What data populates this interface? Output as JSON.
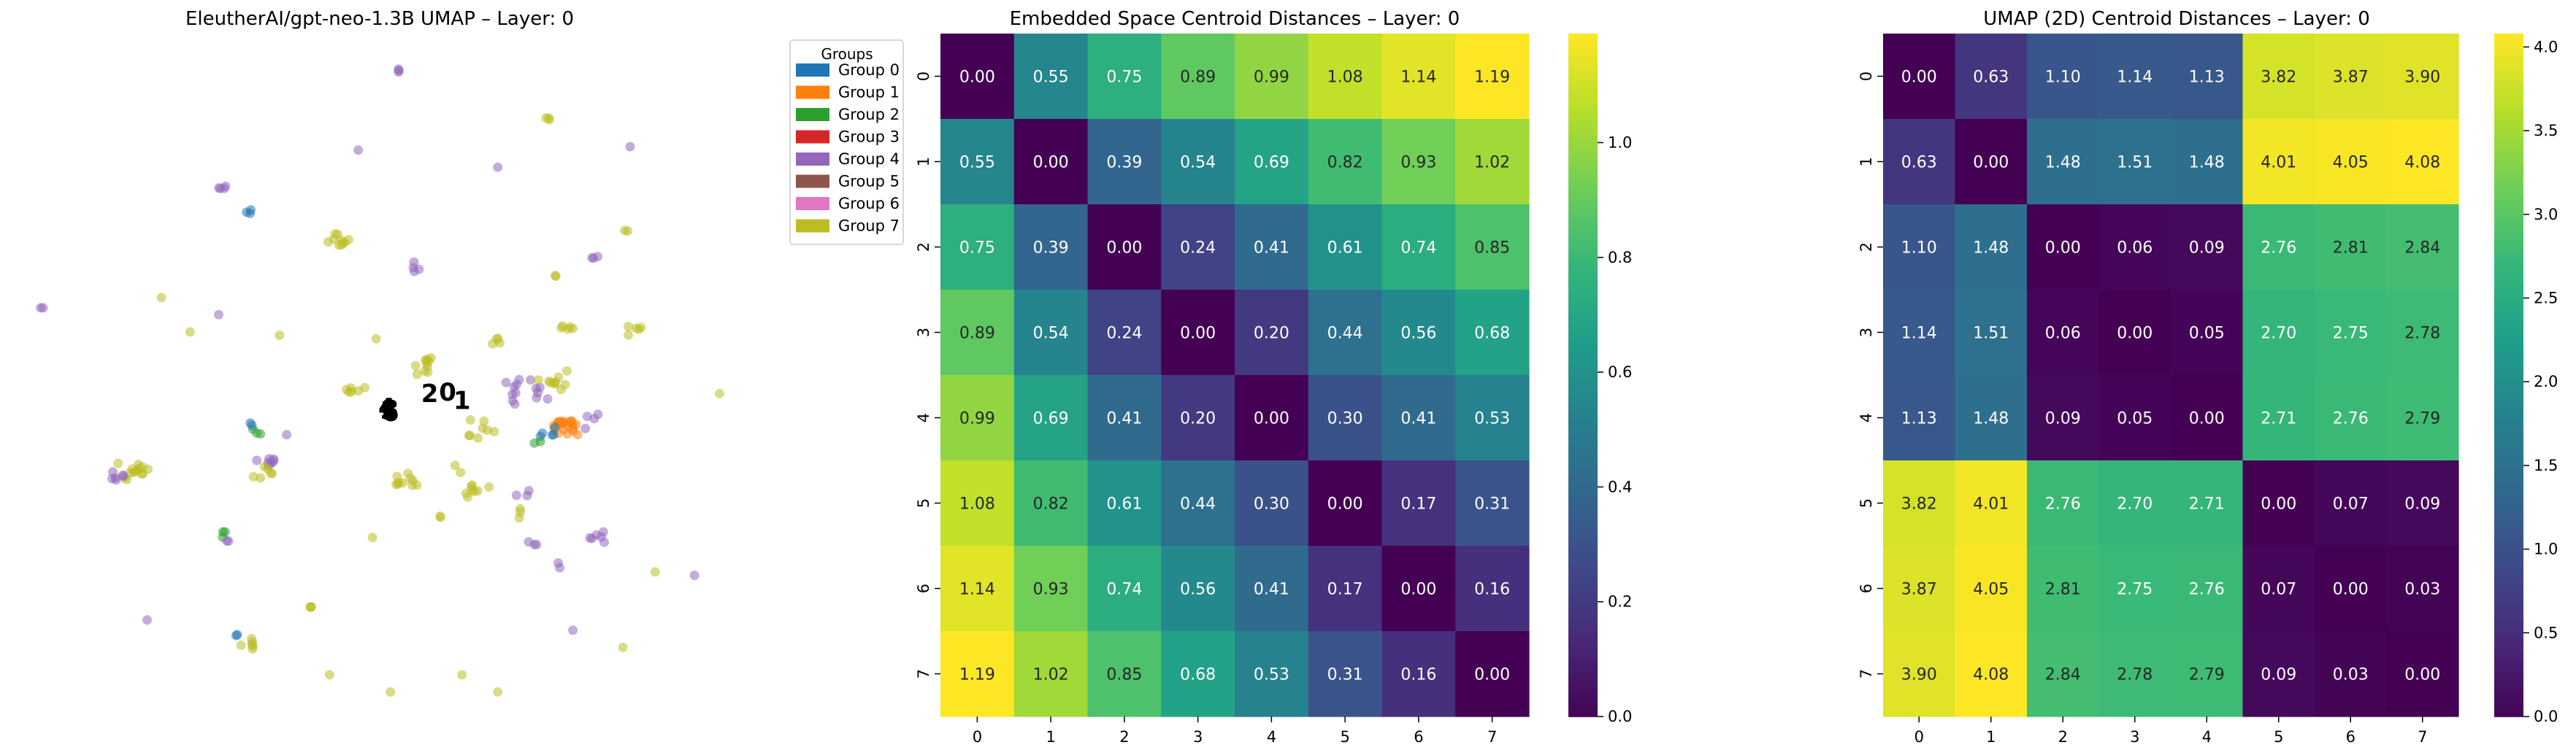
{
  "chart_data": [
    {
      "type": "scatter",
      "title": "EleutherAI/gpt-neo-1.3B UMAP – Layer: 0",
      "legend": {
        "title": "Groups",
        "placement": "outside-right",
        "entries": [
          {
            "label": "Group 0",
            "color": "#1f77b4"
          },
          {
            "label": "Group 1",
            "color": "#ff7f0e"
          },
          {
            "label": "Group 2",
            "color": "#2ca02c"
          },
          {
            "label": "Group 3",
            "color": "#d62728"
          },
          {
            "label": "Group 4",
            "color": "#9467bd"
          },
          {
            "label": "Group 5",
            "color": "#8c564b"
          },
          {
            "label": "Group 6",
            "color": "#e377c2"
          },
          {
            "label": "Group 7",
            "color": "#bcbd22"
          }
        ]
      },
      "xlim": [
        -1.0,
        19.0
      ],
      "ylim": [
        -1.0,
        19.0
      ],
      "axes_visible": false,
      "centroid_labels": [
        {
          "label": "3",
          "x": 9.3,
          "y": 8.1
        },
        {
          "label": "4",
          "x": 9.2,
          "y": 8.15
        },
        {
          "label": "5",
          "x": 9.25,
          "y": 8.05
        },
        {
          "label": "6",
          "x": 9.3,
          "y": 8.0
        },
        {
          "label": "2",
          "x": 10.4,
          "y": 8.55
        },
        {
          "label": "0",
          "x": 10.9,
          "y": 8.6
        },
        {
          "label": "1",
          "x": 11.3,
          "y": 8.35
        }
      ],
      "clusters": [
        {
          "group": 4,
          "x": 9.5,
          "y": 18.2,
          "n": 3,
          "spread": 0.1
        },
        {
          "group": 7,
          "x": 13.7,
          "y": 16.8,
          "n": 3,
          "spread": 0.08
        },
        {
          "group": 4,
          "x": 8.4,
          "y": 15.9,
          "n": 1,
          "spread": 0.0
        },
        {
          "group": 4,
          "x": 16.0,
          "y": 16.0,
          "n": 1,
          "spread": 0.0
        },
        {
          "group": 4,
          "x": 12.3,
          "y": 15.4,
          "n": 1,
          "spread": 0.0
        },
        {
          "group": 4,
          "x": 4.6,
          "y": 14.8,
          "n": 4,
          "spread": 0.12
        },
        {
          "group": 0,
          "x": 5.3,
          "y": 14.1,
          "n": 3,
          "spread": 0.12
        },
        {
          "group": 7,
          "x": 7.8,
          "y": 13.3,
          "n": 10,
          "spread": 0.35
        },
        {
          "group": 4,
          "x": 10.0,
          "y": 12.5,
          "n": 4,
          "spread": 0.25
        },
        {
          "group": 7,
          "x": 15.9,
          "y": 13.6,
          "n": 2,
          "spread": 0.1
        },
        {
          "group": 4,
          "x": 15.0,
          "y": 12.8,
          "n": 3,
          "spread": 0.15
        },
        {
          "group": 7,
          "x": 13.9,
          "y": 12.2,
          "n": 2,
          "spread": 0.1
        },
        {
          "group": 4,
          "x": -0.4,
          "y": 11.3,
          "n": 2,
          "spread": 0.08
        },
        {
          "group": 7,
          "x": 2.9,
          "y": 11.6,
          "n": 1,
          "spread": 0.0
        },
        {
          "group": 4,
          "x": 4.5,
          "y": 11.1,
          "n": 1,
          "spread": 0.0
        },
        {
          "group": 7,
          "x": 3.7,
          "y": 10.6,
          "n": 1,
          "spread": 0.0
        },
        {
          "group": 7,
          "x": 8.9,
          "y": 10.4,
          "n": 1,
          "spread": 0.0
        },
        {
          "group": 7,
          "x": 6.2,
          "y": 10.5,
          "n": 1,
          "spread": 0.0
        },
        {
          "group": 7,
          "x": 14.2,
          "y": 10.7,
          "n": 5,
          "spread": 0.2
        },
        {
          "group": 7,
          "x": 16.2,
          "y": 10.6,
          "n": 5,
          "spread": 0.3
        },
        {
          "group": 7,
          "x": 12.4,
          "y": 10.3,
          "n": 4,
          "spread": 0.25
        },
        {
          "group": 7,
          "x": 10.2,
          "y": 9.6,
          "n": 10,
          "spread": 0.4
        },
        {
          "group": 7,
          "x": 8.3,
          "y": 8.9,
          "n": 6,
          "spread": 0.3
        },
        {
          "group": 7,
          "x": 11.9,
          "y": 7.8,
          "n": 8,
          "spread": 0.5
        },
        {
          "group": 4,
          "x": 13.1,
          "y": 8.8,
          "n": 14,
          "spread": 0.7
        },
        {
          "group": 7,
          "x": 13.8,
          "y": 9.2,
          "n": 10,
          "spread": 0.5
        },
        {
          "group": 1,
          "x": 14.2,
          "y": 7.8,
          "n": 22,
          "spread": 0.35
        },
        {
          "group": 0,
          "x": 13.7,
          "y": 7.7,
          "n": 5,
          "spread": 0.3
        },
        {
          "group": 2,
          "x": 13.5,
          "y": 7.4,
          "n": 2,
          "spread": 0.2
        },
        {
          "group": 4,
          "x": 15.0,
          "y": 8.0,
          "n": 4,
          "spread": 0.4
        },
        {
          "group": 7,
          "x": 18.5,
          "y": 8.8,
          "n": 1,
          "spread": 0.0
        },
        {
          "group": 7,
          "x": 2.1,
          "y": 6.5,
          "n": 14,
          "spread": 0.45
        },
        {
          "group": 4,
          "x": 1.7,
          "y": 6.4,
          "n": 6,
          "spread": 0.2
        },
        {
          "group": 4,
          "x": 5.8,
          "y": 6.8,
          "n": 8,
          "spread": 0.25
        },
        {
          "group": 7,
          "x": 5.7,
          "y": 6.5,
          "n": 6,
          "spread": 0.3
        },
        {
          "group": 2,
          "x": 5.6,
          "y": 7.7,
          "n": 3,
          "spread": 0.15
        },
        {
          "group": 0,
          "x": 5.4,
          "y": 7.9,
          "n": 2,
          "spread": 0.1
        },
        {
          "group": 4,
          "x": 6.4,
          "y": 7.6,
          "n": 1,
          "spread": 0.0
        },
        {
          "group": 7,
          "x": 9.8,
          "y": 6.3,
          "n": 10,
          "spread": 0.35
        },
        {
          "group": 7,
          "x": 11.8,
          "y": 6.0,
          "n": 8,
          "spread": 0.4
        },
        {
          "group": 7,
          "x": 11.1,
          "y": 6.6,
          "n": 2,
          "spread": 0.2
        },
        {
          "group": 4,
          "x": 13.0,
          "y": 5.9,
          "n": 3,
          "spread": 0.2
        },
        {
          "group": 7,
          "x": 13.0,
          "y": 5.3,
          "n": 3,
          "spread": 0.25
        },
        {
          "group": 7,
          "x": 10.7,
          "y": 5.2,
          "n": 2,
          "spread": 0.15
        },
        {
          "group": 2,
          "x": 4.6,
          "y": 4.7,
          "n": 3,
          "spread": 0.15
        },
        {
          "group": 4,
          "x": 4.8,
          "y": 4.5,
          "n": 2,
          "spread": 0.1
        },
        {
          "group": 7,
          "x": 8.8,
          "y": 4.6,
          "n": 1,
          "spread": 0.0
        },
        {
          "group": 4,
          "x": 13.2,
          "y": 4.4,
          "n": 3,
          "spread": 0.2
        },
        {
          "group": 4,
          "x": 15.0,
          "y": 4.6,
          "n": 6,
          "spread": 0.3
        },
        {
          "group": 4,
          "x": 14.1,
          "y": 3.8,
          "n": 2,
          "spread": 0.15
        },
        {
          "group": 7,
          "x": 16.7,
          "y": 3.6,
          "n": 1,
          "spread": 0.0
        },
        {
          "group": 4,
          "x": 17.8,
          "y": 3.5,
          "n": 1,
          "spread": 0.0
        },
        {
          "group": 7,
          "x": 7.0,
          "y": 2.6,
          "n": 3,
          "spread": 0.1
        },
        {
          "group": 4,
          "x": 2.5,
          "y": 2.2,
          "n": 1,
          "spread": 0.0
        },
        {
          "group": 7,
          "x": 5.3,
          "y": 1.5,
          "n": 6,
          "spread": 0.3
        },
        {
          "group": 0,
          "x": 5.0,
          "y": 1.8,
          "n": 2,
          "spread": 0.1
        },
        {
          "group": 4,
          "x": 14.4,
          "y": 1.9,
          "n": 1,
          "spread": 0.0
        },
        {
          "group": 7,
          "x": 15.8,
          "y": 1.4,
          "n": 1,
          "spread": 0.0
        },
        {
          "group": 7,
          "x": 7.6,
          "y": 0.6,
          "n": 1,
          "spread": 0.0
        },
        {
          "group": 7,
          "x": 9.3,
          "y": 0.1,
          "n": 1,
          "spread": 0.0
        },
        {
          "group": 7,
          "x": 11.3,
          "y": 0.6,
          "n": 1,
          "spread": 0.0
        },
        {
          "group": 7,
          "x": 12.3,
          "y": 0.1,
          "n": 1,
          "spread": 0.0
        }
      ]
    },
    {
      "type": "heatmap",
      "title": "Embedded Space Centroid Distances – Layer: 0",
      "xticks": [
        "0",
        "1",
        "2",
        "3",
        "4",
        "5",
        "6",
        "7"
      ],
      "yticks": [
        "0",
        "1",
        "2",
        "3",
        "4",
        "5",
        "6",
        "7"
      ],
      "colormap": "viridis",
      "vmin": 0.0,
      "vmax": 1.19,
      "colorbar_ticks": [
        "0.0",
        "0.2",
        "0.4",
        "0.6",
        "0.8",
        "1.0"
      ],
      "colorbar_tick_values": [
        0.0,
        0.2,
        0.4,
        0.6,
        0.8,
        1.0
      ],
      "values": [
        [
          0.0,
          0.55,
          0.75,
          0.89,
          0.99,
          1.08,
          1.14,
          1.19
        ],
        [
          0.55,
          0.0,
          0.39,
          0.54,
          0.69,
          0.82,
          0.93,
          1.02
        ],
        [
          0.75,
          0.39,
          0.0,
          0.24,
          0.41,
          0.61,
          0.74,
          0.85
        ],
        [
          0.89,
          0.54,
          0.24,
          0.0,
          0.2,
          0.44,
          0.56,
          0.68
        ],
        [
          0.99,
          0.69,
          0.41,
          0.2,
          0.0,
          0.3,
          0.41,
          0.53
        ],
        [
          1.08,
          0.82,
          0.61,
          0.44,
          0.3,
          0.0,
          0.17,
          0.31
        ],
        [
          1.14,
          0.93,
          0.74,
          0.56,
          0.41,
          0.17,
          0.0,
          0.16
        ],
        [
          1.19,
          1.02,
          0.85,
          0.68,
          0.53,
          0.31,
          0.16,
          0.0
        ]
      ]
    },
    {
      "type": "heatmap",
      "title": "UMAP (2D) Centroid Distances – Layer: 0",
      "xticks": [
        "0",
        "1",
        "2",
        "3",
        "4",
        "5",
        "6",
        "7"
      ],
      "yticks": [
        "0",
        "1",
        "2",
        "3",
        "4",
        "5",
        "6",
        "7"
      ],
      "colormap": "viridis",
      "vmin": 0.0,
      "vmax": 4.08,
      "colorbar_ticks": [
        "0.0",
        "0.5",
        "1.0",
        "1.5",
        "2.0",
        "2.5",
        "3.0",
        "3.5",
        "4.0"
      ],
      "colorbar_tick_values": [
        0.0,
        0.5,
        1.0,
        1.5,
        2.0,
        2.5,
        3.0,
        3.5,
        4.0
      ],
      "values": [
        [
          0.0,
          0.63,
          1.1,
          1.14,
          1.13,
          3.82,
          3.87,
          3.9
        ],
        [
          0.63,
          0.0,
          1.48,
          1.51,
          1.48,
          4.01,
          4.05,
          4.08
        ],
        [
          1.1,
          1.48,
          0.0,
          0.06,
          0.09,
          2.76,
          2.81,
          2.84
        ],
        [
          1.14,
          1.51,
          0.06,
          0.0,
          0.05,
          2.7,
          2.75,
          2.78
        ],
        [
          1.13,
          1.48,
          0.09,
          0.05,
          0.0,
          2.71,
          2.76,
          2.79
        ],
        [
          3.82,
          4.01,
          2.76,
          2.7,
          2.71,
          0.0,
          0.07,
          0.09
        ],
        [
          3.87,
          4.05,
          2.81,
          2.75,
          2.76,
          0.07,
          0.0,
          0.03
        ],
        [
          3.9,
          4.08,
          2.84,
          2.78,
          2.79,
          0.09,
          0.03,
          0.0
        ]
      ]
    }
  ]
}
